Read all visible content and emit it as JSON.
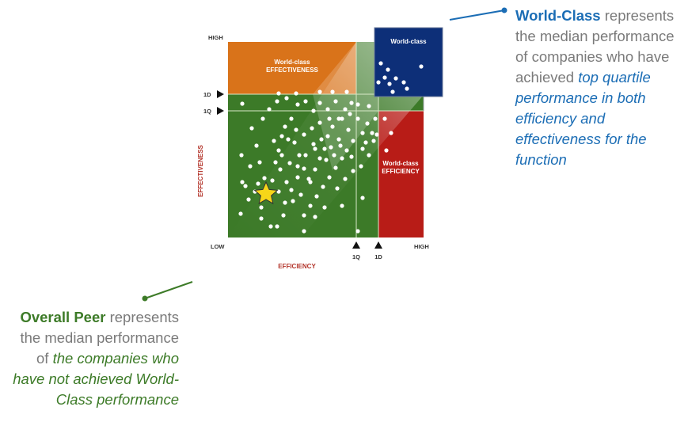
{
  "matrix": {
    "axis_y_label": "EFFECTIVENESS",
    "axis_x_label": "EFFICIENCY",
    "y_high": "HIGH",
    "x_low": "LOW",
    "x_high": "HIGH",
    "y_marker_1d": "1D",
    "y_marker_1q": "1Q",
    "x_marker_1q": "1Q",
    "x_marker_1d": "1D",
    "zone_effectiveness_line1": "World-class",
    "zone_effectiveness_line2": "EFFECTIVENESS",
    "zone_efficiency_line1": "World-class",
    "zone_efficiency_line2": "EFFICIENCY",
    "zone_worldclass": "World-class",
    "colors": {
      "orange": "#d9731a",
      "red": "#b81c17",
      "green": "#3c7a28",
      "navy": "#0d2f78",
      "star": "#f6d619",
      "axis_label": "#b3342a",
      "connector": "#1b6db5",
      "connector_green": "#3d7b28"
    }
  },
  "world_class_annotation": {
    "heading": "World-Class",
    "text_plain": "represents the median performance of companies who have achieved",
    "text_emphasis": "top quartile performance in both efficiency and effectiveness for the function"
  },
  "overall_peer_annotation": {
    "heading": "Overall Peer",
    "text_plain": "represents the median performance of",
    "text_emphasis": "the companies who have not achieved World-Class performance"
  }
}
